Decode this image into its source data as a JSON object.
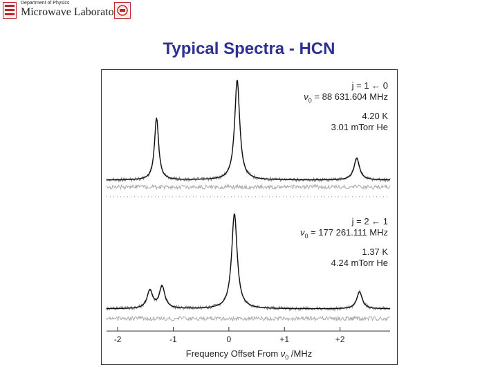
{
  "header": {
    "department": "Department of Physics",
    "laboratory": "Microwave Laboratory",
    "logo_left_icon": "university-seal-icon",
    "logo_right_icon": "university-seal-icon",
    "accent": "#c0262d"
  },
  "slide": {
    "title": "Typical Spectra - HCN",
    "title_color": "#2e3192"
  },
  "chart_data": {
    "type": "line",
    "xlabel_prefix": "Frequency Offset From ",
    "xlabel_symbol": "ν",
    "xlabel_sub": "0",
    "xlabel_suffix": " /MHz",
    "xlim": [
      -2.2,
      2.9
    ],
    "x_ticks": [
      -2,
      -1,
      0,
      1,
      2
    ],
    "x_tick_labels": [
      "-2",
      "-1",
      "0",
      "+1",
      "+2"
    ],
    "panels": [
      {
        "transition": "j = 1 ← 0",
        "freq_prefix": "ν",
        "freq_sub": "0",
        "freq_value": " = 88 631.604 MHz",
        "temperature": "4.20 K",
        "pressure": "3.01 mTorr He",
        "peaks": [
          {
            "center": -1.3,
            "height": 0.62,
            "width": 0.045
          },
          {
            "center": 0.15,
            "height": 1.0,
            "width": 0.055
          },
          {
            "center": 2.3,
            "height": 0.22,
            "width": 0.06
          }
        ]
      },
      {
        "transition": "j = 2 ← 1",
        "freq_prefix": "ν",
        "freq_sub": "0",
        "freq_value": " = 177 261.111 MHz",
        "temperature": "1.37 K",
        "pressure": "4.24 mTorr He",
        "peaks": [
          {
            "center": -1.42,
            "height": 0.18,
            "width": 0.06
          },
          {
            "center": -1.2,
            "height": 0.22,
            "width": 0.06
          },
          {
            "center": 0.1,
            "height": 0.95,
            "width": 0.06
          },
          {
            "center": 2.35,
            "height": 0.17,
            "width": 0.06
          }
        ]
      }
    ],
    "colors": {
      "fit": "#111111",
      "data": "#555555",
      "residual": "#aaaaaa",
      "frame": "#333333"
    }
  }
}
